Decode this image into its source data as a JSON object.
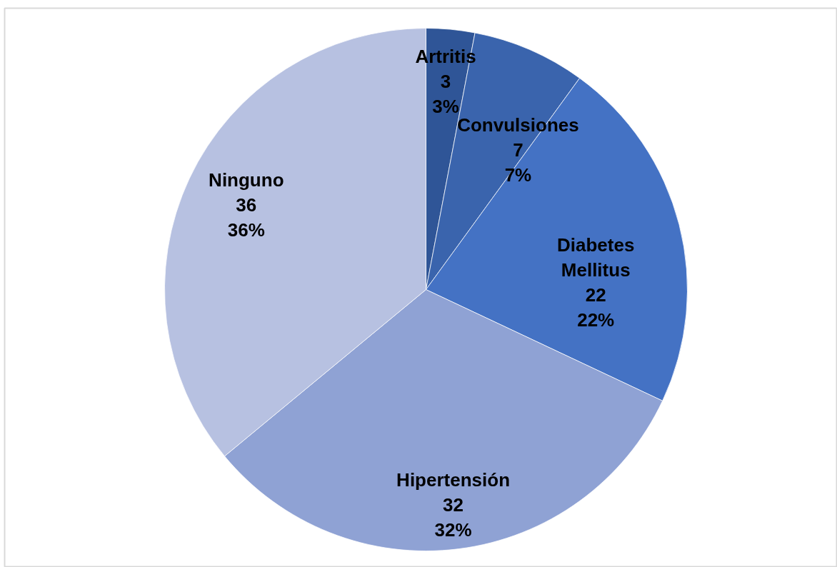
{
  "chart_data": {
    "type": "pie",
    "categories": [
      "Artritis",
      "Convulsiones",
      "Diabetes Mellitus",
      "Hipertensión",
      "Ninguno"
    ],
    "values": [
      3,
      7,
      22,
      32,
      36
    ],
    "colors": [
      "#2f5597",
      "#3a64ad",
      "#4472c4",
      "#8fa2d4",
      "#b7c1e1"
    ],
    "value_labels": [
      "3\n3%",
      "7\n7%",
      "22\n22%",
      "32\n32%",
      "36\n36%"
    ]
  }
}
